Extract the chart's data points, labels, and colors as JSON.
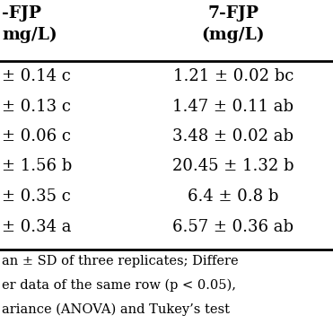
{
  "col1_header_line1": "-FJP",
  "col1_header_line2": "mg/L)",
  "col2_header_line1": "7-FJP",
  "col2_header_line2": "(mg/L)",
  "col1_data": [
    "± 0.14 c",
    "± 0.13 c",
    "± 0.06 c",
    "± 1.56 b",
    "± 0.35 c",
    "± 0.34 a"
  ],
  "col2_data": [
    "1.21 ± 0.02 bc",
    "1.47 ± 0.11 ab",
    "3.48 ± 0.02 ab",
    "20.45 ± 1.32 b",
    "6.4 ± 0.8 b",
    "6.57 ± 0.36 ab"
  ],
  "footnote_lines": [
    "an ± SD of three replicates; Differe",
    "er data of the same row (p < 0.05),",
    "ariance (ANOVA) and Tukey’s test"
  ],
  "bg_color": "#ffffff",
  "text_color": "#000000",
  "header_fontsize": 13.5,
  "data_fontsize": 13.0,
  "footnote_fontsize": 10.5
}
